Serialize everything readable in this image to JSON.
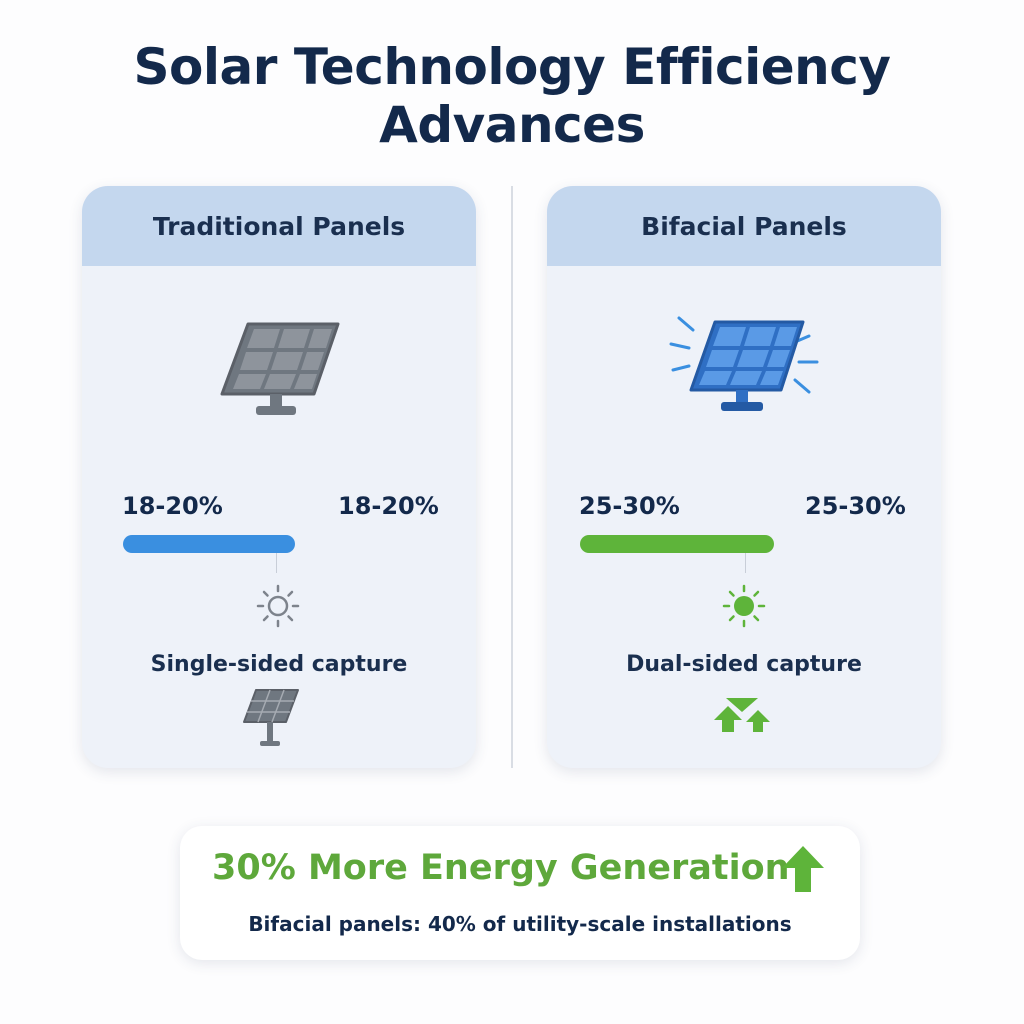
{
  "title": "Solar Technology Efficiency Advances",
  "cards": [
    {
      "header": "Traditional Panels",
      "efficiency_left": "18-20%",
      "efficiency_right": "18-20%",
      "efficiency_level": 0.2,
      "caption": "Single-sided capture",
      "accent_color": "#3a8fe0",
      "icons": [
        "solar-panel-icon",
        "sun-outline-icon",
        "small-solar-panel-icon"
      ]
    },
    {
      "header": "Bifacial Panels",
      "efficiency_left": "25-30%",
      "efficiency_right": "25-30%",
      "efficiency_level": 0.3,
      "caption": "Dual-sided capture",
      "accent_color": "#5eb43a",
      "icons": [
        "bifacial-solar-panel-icon",
        "sun-filled-icon",
        "dual-arrow-up-icon"
      ]
    }
  ],
  "summary": {
    "headline": "30% More Energy Generation",
    "subtext": "Bifacial panels: 40% of utility-scale installations",
    "accent_color": "#5ea83b",
    "icon": "arrow-up-icon"
  }
}
